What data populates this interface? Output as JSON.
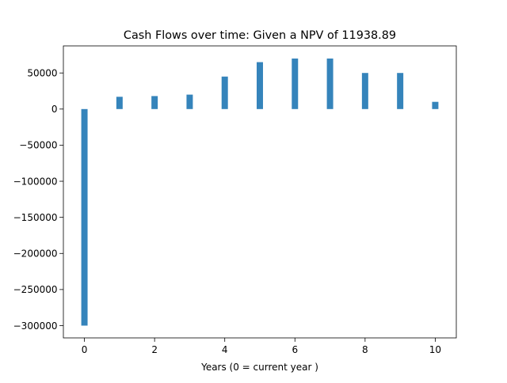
{
  "chart_data": {
    "type": "bar",
    "title": "Cash Flows over time: Given a NPV of 11938.89",
    "xlabel": "Years (0 = current year )",
    "ylabel": "",
    "categories": [
      0,
      1,
      2,
      3,
      4,
      5,
      6,
      7,
      8,
      9,
      10
    ],
    "values": [
      -300000,
      17000,
      18000,
      20000,
      45000,
      65000,
      70000,
      70000,
      50000,
      50000,
      10000
    ],
    "xlim": [
      -0.6,
      10.6
    ],
    "ylim": [
      -317000,
      87500
    ],
    "xticks": [
      0,
      2,
      4,
      6,
      8,
      10
    ],
    "yticks": [
      50000,
      0,
      -50000,
      -100000,
      -150000,
      -200000,
      -250000,
      -300000
    ],
    "xtick_labels": [
      "0",
      "2",
      "4",
      "6",
      "8",
      "10"
    ],
    "ytick_labels": [
      "50000",
      "0",
      "−50000",
      "−100000",
      "−150000",
      "−200000",
      "−250000",
      "−300000"
    ],
    "bar_color": "#3584bb",
    "grid": false,
    "legend": "none"
  }
}
